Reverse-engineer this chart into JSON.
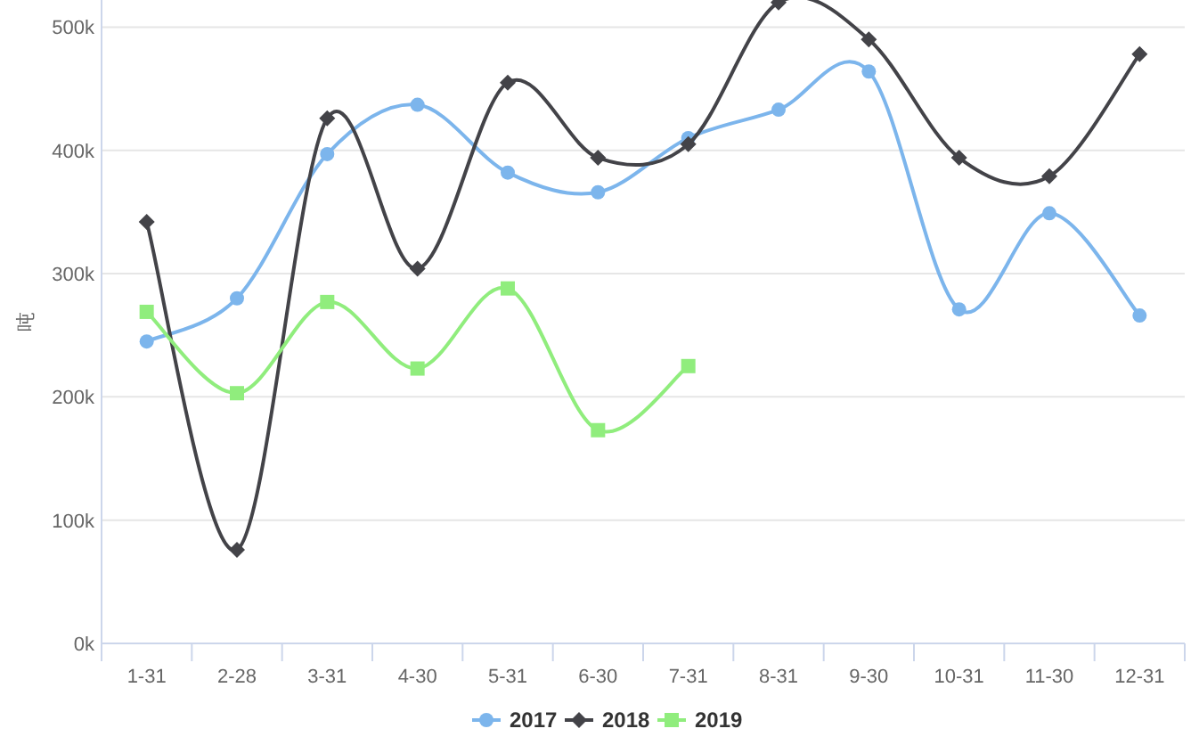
{
  "chart_data": {
    "type": "line",
    "ylabel": "吨",
    "categories": [
      "1-31",
      "2-28",
      "3-31",
      "4-30",
      "5-31",
      "6-30",
      "7-31",
      "8-31",
      "9-30",
      "10-31",
      "11-30",
      "12-31"
    ],
    "series": [
      {
        "name": "2017",
        "color": "#7cb5ec",
        "marker": "circle",
        "values": [
          245,
          280,
          397,
          437,
          382,
          366,
          410,
          433,
          464,
          271,
          349,
          266
        ]
      },
      {
        "name": "2018",
        "color": "#434348",
        "marker": "diamond",
        "values": [
          342,
          76,
          426,
          304,
          455,
          394,
          405,
          520,
          490,
          394,
          379,
          478
        ]
      },
      {
        "name": "2019",
        "color": "#90ed7d",
        "marker": "square",
        "values": [
          269,
          203,
          277,
          223,
          288,
          173,
          225,
          null,
          null,
          null,
          null,
          null
        ]
      }
    ],
    "ylim": [
      0,
      522
    ],
    "yticks": [
      {
        "value": 0,
        "label": "0k"
      },
      {
        "value": 100,
        "label": "100k"
      },
      {
        "value": 200,
        "label": "200k"
      },
      {
        "value": 300,
        "label": "300k"
      },
      {
        "value": 400,
        "label": "400k"
      },
      {
        "value": 500,
        "label": "500k"
      }
    ],
    "grid": "y",
    "legend": "bottom"
  }
}
